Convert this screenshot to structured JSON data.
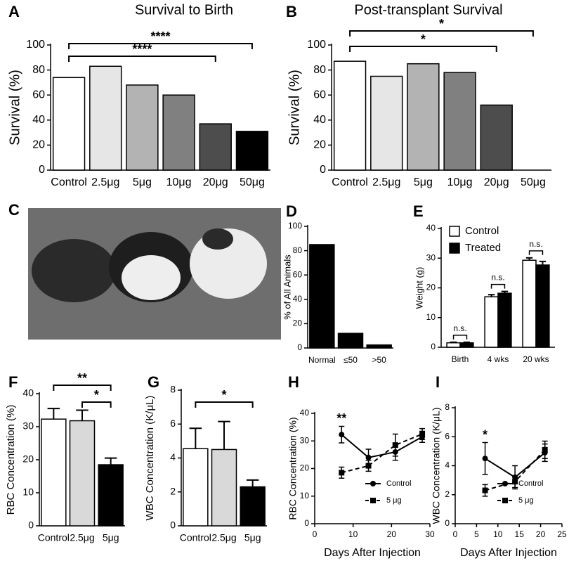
{
  "chart_data": [
    {
      "type": "bar",
      "label": "A",
      "title": "Survival to Birth",
      "ylabel": "Survival (%)",
      "categories": [
        "Control",
        "2.5μg",
        "5μg",
        "10μg",
        "20μg",
        "50μg"
      ],
      "values": [
        74,
        83,
        68,
        60,
        37,
        31
      ],
      "colors": [
        "#ffffff",
        "#e6e6e6",
        "#b3b3b3",
        "#808080",
        "#4d4d4d",
        "#000000"
      ],
      "ylim": [
        0,
        100
      ],
      "yticks": [
        0,
        20,
        40,
        60,
        80,
        100
      ],
      "annotations": [
        {
          "text": "****",
          "between": [
            "Control",
            "20μg"
          ]
        },
        {
          "text": "****",
          "between": [
            "Control",
            "50μg"
          ]
        }
      ]
    },
    {
      "type": "bar",
      "label": "B",
      "title": "Post-transplant Survival",
      "ylabel": "Survival (%)",
      "categories": [
        "Control",
        "2.5μg",
        "5μg",
        "10μg",
        "20μg",
        "50μg"
      ],
      "values": [
        87,
        75,
        85,
        78,
        52,
        0
      ],
      "colors": [
        "#ffffff",
        "#e6e6e6",
        "#b3b3b3",
        "#808080",
        "#4d4d4d",
        "#000000"
      ],
      "ylim": [
        0,
        100
      ],
      "yticks": [
        0,
        20,
        40,
        60,
        80,
        100
      ],
      "annotations": [
        {
          "text": "*",
          "between": [
            "Control",
            "20μg"
          ]
        },
        {
          "text": "*",
          "between": [
            "Control",
            "50μg"
          ]
        }
      ]
    },
    {
      "type": "bar",
      "label": "D",
      "ylabel": "% of All Animals",
      "categories": [
        "Normal",
        "≤50",
        ">50"
      ],
      "values": [
        85,
        12,
        2.5
      ],
      "color": "#000000",
      "ylim": [
        0,
        100
      ],
      "yticks": [
        0,
        20,
        40,
        60,
        80,
        100
      ]
    },
    {
      "type": "bar",
      "label": "E",
      "ylabel": "Weight (g)",
      "categories": [
        "Birth",
        "4 wks",
        "20 wks"
      ],
      "series": [
        {
          "name": "Control",
          "color": "#ffffff",
          "values": [
            1.5,
            17,
            29.3
          ],
          "errors": [
            0.2,
            0.7,
            0.8
          ]
        },
        {
          "name": "Treated",
          "color": "#000000",
          "values": [
            1.5,
            18.2,
            27.7
          ],
          "errors": [
            0.2,
            0.6,
            1.2
          ]
        }
      ],
      "ylim": [
        0,
        40
      ],
      "yticks": [
        0,
        10,
        20,
        30,
        40
      ],
      "legend": "upper left",
      "annotations": [
        "n.s.",
        "n.s.",
        "n.s."
      ]
    },
    {
      "type": "bar",
      "label": "F",
      "ylabel": "RBC Concentration (%)",
      "categories": [
        "Control",
        "2.5μg",
        "5μg"
      ],
      "values": [
        32.3,
        31.8,
        18.5
      ],
      "errors": [
        3.2,
        3.2,
        2
      ],
      "colors": [
        "#ffffff",
        "#d9d9d9",
        "#000000"
      ],
      "ylim": [
        0,
        40
      ],
      "yticks": [
        0,
        10,
        20,
        30,
        40
      ],
      "annotations": [
        {
          "text": "**",
          "between": [
            "Control",
            "5μg"
          ]
        },
        {
          "text": "*",
          "between": [
            "2.5μg",
            "5μg"
          ]
        }
      ]
    },
    {
      "type": "bar",
      "label": "G",
      "ylabel": "WBC Concentration (K/μL)",
      "categories": [
        "Control",
        "2.5μg",
        "5μg"
      ],
      "values": [
        4.55,
        4.5,
        2.3
      ],
      "errors": [
        1.2,
        1.65,
        0.4
      ],
      "colors": [
        "#ffffff",
        "#d9d9d9",
        "#000000"
      ],
      "ylim": [
        0,
        8
      ],
      "yticks": [
        0,
        2,
        4,
        6,
        8
      ],
      "annotations": [
        {
          "text": "*",
          "between": [
            "Control",
            "5μg"
          ]
        }
      ]
    },
    {
      "type": "line",
      "label": "H",
      "ylabel": "RBC Concentration (%)",
      "xlabel": "Days After Injection",
      "x": [
        7,
        14,
        21,
        28
      ],
      "series": [
        {
          "name": "Control",
          "color": "#000000",
          "marker": "circle",
          "dashed": false,
          "values": [
            32.3,
            24,
            26,
            31.5
          ],
          "errors": [
            3,
            3,
            3,
            2
          ]
        },
        {
          "name": "5 μg",
          "color": "#000000",
          "marker": "square",
          "dashed": true,
          "values": [
            18.5,
            21,
            28.5,
            32.5
          ],
          "errors": [
            2,
            2,
            4,
            2
          ]
        }
      ],
      "xlim": [
        0,
        30
      ],
      "xticks": [
        0,
        10,
        20,
        30
      ],
      "ylim": [
        0,
        40
      ],
      "yticks": [
        0,
        10,
        20,
        30,
        40
      ],
      "legend": "lower right",
      "annotations": [
        "**",
        null,
        null,
        null
      ]
    },
    {
      "type": "line",
      "label": "I",
      "ylabel": "WBC Concentration (K/μL)",
      "xlabel": "Days After Injection",
      "x": [
        7,
        14,
        21
      ],
      "series": [
        {
          "name": "Control",
          "color": "#000000",
          "marker": "circle",
          "dashed": false,
          "values": [
            4.5,
            3.2,
            4.9
          ],
          "errors": [
            1.1,
            0.8,
            0.6
          ]
        },
        {
          "name": "5 μg",
          "color": "#000000",
          "marker": "square",
          "dashed": true,
          "values": [
            2.3,
            2.9,
            5.1
          ],
          "errors": [
            0.4,
            0.4,
            0.6
          ]
        }
      ],
      "xlim": [
        0,
        25
      ],
      "xticks": [
        0,
        5,
        10,
        15,
        20,
        25
      ],
      "ylim": [
        0,
        8
      ],
      "yticks": [
        0,
        2,
        4,
        6,
        8
      ],
      "legend": "lower right",
      "annotations": [
        "*",
        null,
        null
      ]
    }
  ],
  "photo": {
    "label": "C"
  }
}
